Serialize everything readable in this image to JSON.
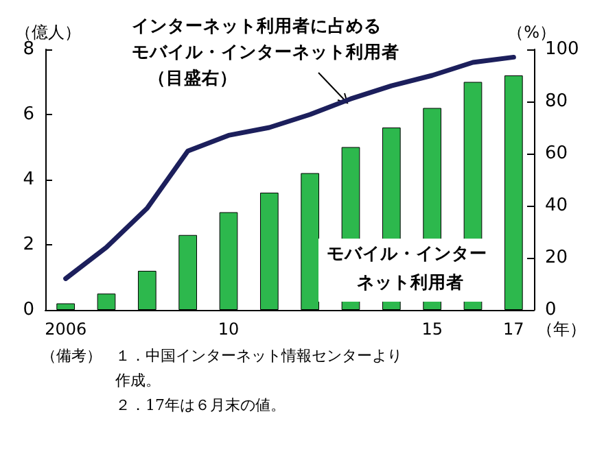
{
  "chart_data": {
    "type": "bar",
    "categories": [
      "2006",
      null,
      null,
      null,
      "10",
      null,
      null,
      null,
      null,
      "15",
      null,
      "17"
    ],
    "xlabel": "（年）",
    "ylabel": "（億人）",
    "y2label": "（%）",
    "series": [
      {
        "name": "モバイル・インターネット利用者",
        "color": "#2db84d",
        "values": [
          0.2,
          0.5,
          1.2,
          2.3,
          3.0,
          3.6,
          4.2,
          5.0,
          5.6,
          6.2,
          7.0,
          7.2
        ]
      },
      {
        "name": "インターネット利用者に占めるモバイル・インターネット利用者（目盛右）",
        "type": "line",
        "axis": "y2",
        "color": "#1c1f5c",
        "values": [
          12,
          24,
          39,
          61,
          67,
          70,
          75,
          81,
          86,
          90,
          95,
          97
        ]
      }
    ],
    "ylim": [
      0,
      8
    ],
    "yticks": [
      0,
      2,
      4,
      6,
      8
    ],
    "y2lim": [
      0,
      100
    ],
    "y2ticks": [
      0,
      20,
      40,
      60,
      80,
      100
    ],
    "grid": false,
    "legend": false,
    "marker": "none",
    "line_style": "solid",
    "annotations": [
      "（備考）１．中国インターネット情報センターより作成。",
      "２．17年は６月末の値。"
    ]
  }
}
